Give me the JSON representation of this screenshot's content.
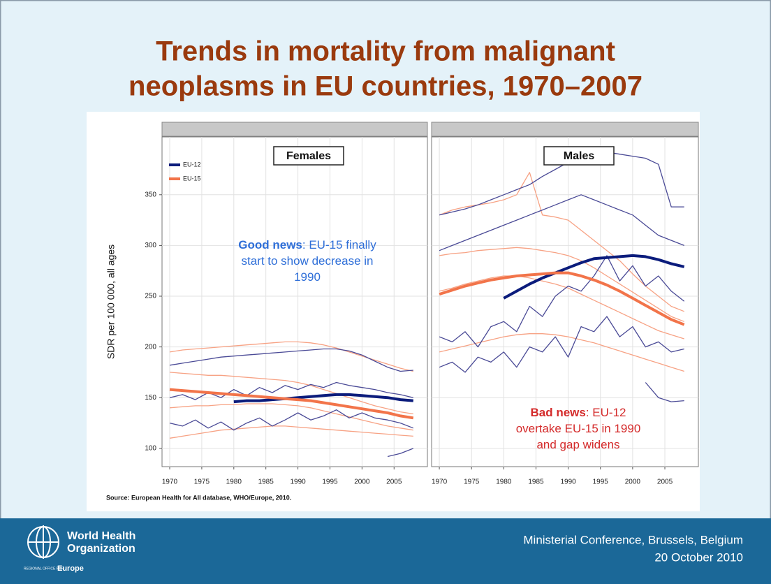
{
  "title_lines": [
    "Trends in mortality from malignant",
    "neoplasms in EU countries, 1970–2007"
  ],
  "chart_data": {
    "type": "line",
    "ylabel": "SDR per 100 000, all ages",
    "x": [
      1970,
      1972,
      1974,
      1976,
      1978,
      1980,
      1982,
      1984,
      1986,
      1988,
      1990,
      1992,
      1994,
      1996,
      1998,
      2000,
      2002,
      2004,
      2006,
      2008
    ],
    "xlim": [
      1968.8,
      2010.2
    ],
    "xticks": [
      1970,
      1975,
      1980,
      1985,
      1990,
      1995,
      2000,
      2005
    ],
    "ylim": [
      82,
      407
    ],
    "yticks": [
      100,
      150,
      200,
      250,
      300,
      350
    ],
    "grid": true,
    "legend": "top-left",
    "panels": [
      {
        "title": "Females",
        "annotation": {
          "bold": "Good news",
          "color": "#2f6fd8",
          "lines": [
            ": EU-15 finally",
            "start to show decrease in",
            "1990"
          ]
        },
        "series": [
          {
            "color": "#f7a284",
            "values": [
              195,
              197,
              198,
              199,
              200,
              201,
              202,
              203,
              204,
              205,
              205,
              204,
              202,
              199,
              195,
              191,
              187,
              183,
              179,
              176
            ]
          },
          {
            "color": "#f7a284",
            "values": [
              175,
              174,
              173,
              172,
              172,
              171,
              170,
              169,
              168,
              167,
              165,
              162,
              158,
              154,
              150,
              146,
              142,
              139,
              136,
              134
            ]
          },
          {
            "color": "#f7a284",
            "values": [
              140,
              141,
              142,
              142,
              143,
              143,
              144,
              144,
              144,
              143,
              142,
              140,
              137,
              134,
              131,
              128,
              125,
              122,
              120,
              118
            ]
          },
          {
            "color": "#f7a284",
            "values": [
              110,
              112,
              114,
              116,
              118,
              119,
              120,
              121,
              122,
              122,
              121,
              120,
              119,
              118,
              117,
              116,
              115,
              114,
              113,
              112
            ]
          },
          {
            "color": "#4a4a96",
            "values": [
              182,
              184,
              186,
              188,
              190,
              191,
              192,
              193,
              194,
              195,
              196,
              197,
              198,
              198,
              196,
              192,
              186,
              180,
              176,
              177
            ]
          },
          {
            "color": "#4a4a96",
            "values": [
              150,
              153,
              148,
              155,
              150,
              158,
              152,
              160,
              155,
              162,
              158,
              163,
              160,
              165,
              162,
              160,
              158,
              155,
              153,
              150
            ]
          },
          {
            "color": "#4a4a96",
            "values": [
              125,
              122,
              128,
              120,
              126,
              118,
              125,
              130,
              122,
              128,
              135,
              128,
              132,
              138,
              130,
              135,
              130,
              128,
              125,
              120
            ]
          },
          {
            "color": "#4a4a96",
            "values": [
              null,
              null,
              null,
              null,
              null,
              null,
              null,
              null,
              null,
              null,
              null,
              null,
              null,
              null,
              null,
              null,
              null,
              92,
              95,
              100
            ]
          },
          {
            "name": "EU-12",
            "color": "#0b1c7c",
            "values": [
              null,
              null,
              null,
              null,
              null,
              146,
              147,
              147,
              148,
              149,
              150,
              151,
              152,
              153,
              153,
              152,
              151,
              150,
              148,
              147
            ]
          },
          {
            "name": "EU-15",
            "color": "#f2744a",
            "values": [
              158,
              157,
              156,
              155,
              154,
              153,
              152,
              151,
              150,
              149,
              148,
              147,
              145,
              143,
              141,
              139,
              137,
              135,
              132,
              130
            ]
          }
        ]
      },
      {
        "title": "Males",
        "annotation": {
          "bold": "Bad news",
          "color": "#d42a2a",
          "lines": [
            ": EU-12",
            "overtake EU-15 in 1990",
            "and gap widens"
          ]
        },
        "series": [
          {
            "color": "#f7a284",
            "values": [
              330,
              335,
              338,
              340,
              342,
              345,
              350,
              372,
              330,
              328,
              325,
              315,
              305,
              295,
              285,
              272,
              260,
              250,
              240,
              235
            ]
          },
          {
            "color": "#f7a284",
            "values": [
              290,
              292,
              293,
              295,
              296,
              297,
              298,
              297,
              295,
              293,
              290,
              285,
              278,
              270,
              262,
              254,
              246,
              238,
              230,
              225
            ]
          },
          {
            "color": "#f7a284",
            "values": [
              255,
              258,
              262,
              265,
              268,
              270,
              270,
              268,
              265,
              262,
              258,
              252,
              246,
              240,
              234,
              228,
              222,
              216,
              212,
              208
            ]
          },
          {
            "color": "#f7a284",
            "values": [
              195,
              198,
              201,
              204,
              207,
              210,
              212,
              213,
              213,
              212,
              210,
              207,
              204,
              200,
              196,
              192,
              188,
              184,
              180,
              176
            ]
          },
          {
            "color": "#4a4a96",
            "values": [
              330,
              333,
              336,
              340,
              345,
              350,
              355,
              360,
              368,
              375,
              382,
              388,
              390,
              392,
              390,
              388,
              386,
              380,
              338,
              338
            ]
          },
          {
            "color": "#4a4a96",
            "values": [
              295,
              300,
              305,
              310,
              315,
              320,
              325,
              330,
              335,
              340,
              345,
              350,
              345,
              340,
              335,
              330,
              320,
              310,
              305,
              300
            ]
          },
          {
            "color": "#4a4a96",
            "values": [
              210,
              205,
              215,
              200,
              220,
              225,
              215,
              240,
              230,
              250,
              260,
              255,
              270,
              290,
              265,
              280,
              260,
              270,
              255,
              245
            ]
          },
          {
            "color": "#4a4a96",
            "values": [
              180,
              185,
              175,
              190,
              185,
              195,
              180,
              200,
              195,
              210,
              190,
              220,
              215,
              230,
              210,
              220,
              200,
              205,
              195,
              198
            ]
          },
          {
            "color": "#4a4a96",
            "values": [
              null,
              null,
              null,
              null,
              null,
              null,
              null,
              null,
              null,
              null,
              null,
              null,
              null,
              null,
              null,
              null,
              165,
              150,
              146,
              147
            ]
          },
          {
            "name": "EU-12",
            "color": "#0b1c7c",
            "values": [
              null,
              null,
              null,
              null,
              null,
              248,
              255,
              262,
              268,
              273,
              278,
              283,
              287,
              288,
              289,
              290,
              289,
              286,
              282,
              279
            ]
          },
          {
            "name": "EU-15",
            "color": "#f2744a",
            "values": [
              252,
              256,
              260,
              263,
              266,
              268,
              270,
              271,
              272,
              273,
              273,
              270,
              266,
              261,
              255,
              248,
              241,
              234,
              227,
              222
            ]
          }
        ]
      }
    ]
  },
  "source": "Source: European Health for All database, WHO/Europe, 2010.",
  "footer": {
    "org_lines": [
      "World Health",
      "Organization"
    ],
    "office": "REGIONAL OFFICE FOR",
    "region": "Europe",
    "event": "Ministerial Conference, Brussels, Belgium",
    "date": "20 October 2010"
  }
}
